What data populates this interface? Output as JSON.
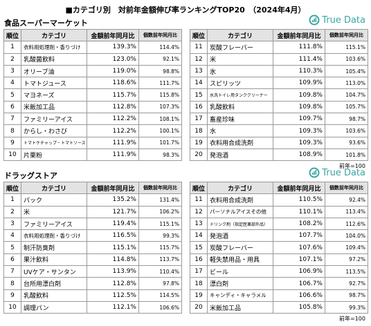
{
  "title": "■カテゴリ別　対前年金額伸び率ランキングTOP20　（2024年4月）",
  "sections": [
    {
      "heading": "食品スーパーマーケット",
      "logo": "True Data",
      "note": "前年=100",
      "tables": [
        {
          "headers": [
            "順位",
            "カテゴリ",
            "金額前年同月比",
            "個数前年同月比"
          ],
          "rows": [
            [
              "1",
              "衣料用処理剤・香りづけ",
              "139.3%",
              "114.4%"
            ],
            [
              "2",
              "乳酸菌飲料",
              "123.0%",
              "92.1%"
            ],
            [
              "3",
              "オリーブ油",
              "119.0%",
              "98.8%"
            ],
            [
              "4",
              "トマトジュース",
              "118.6%",
              "111.7%"
            ],
            [
              "5",
              "マヨネーズ",
              "115.7%",
              "115.8%"
            ],
            [
              "6",
              "米飯加工品",
              "112.8%",
              "107.3%"
            ],
            [
              "7",
              "ファミリーアイス",
              "112.2%",
              "108.1%"
            ],
            [
              "8",
              "からし・わさび",
              "112.2%",
              "100.1%"
            ],
            [
              "9",
              "トマトケチャップ・トマトソース",
              "111.9%",
              "101.7%"
            ],
            [
              "10",
              "片栗粉",
              "111.9%",
              "98.3%"
            ]
          ]
        },
        {
          "headers": [
            "順位",
            "カテゴリ",
            "金額前年同月比",
            "個数前年同月比"
          ],
          "rows": [
            [
              "11",
              "炭酸フレーバー",
              "111.8%",
              "115.1%"
            ],
            [
              "12",
              "米",
              "111.4%",
              "103.6%"
            ],
            [
              "13",
              "氷",
              "110.3%",
              "105.4%"
            ],
            [
              "14",
              "スピリッツ",
              "109.9%",
              "113.0%"
            ],
            [
              "15",
              "水洗トイレ用タンククリーナー",
              "109.8%",
              "104.7%"
            ],
            [
              "16",
              "乳酸飲料",
              "109.8%",
              "105.7%"
            ],
            [
              "17",
              "畜産珍味",
              "109.7%",
              "98.7%"
            ],
            [
              "18",
              "水",
              "109.3%",
              "103.6%"
            ],
            [
              "19",
              "衣料用合成洗剤",
              "109.3%",
              "93.6%"
            ],
            [
              "20",
              "発泡酒",
              "108.9%",
              "101.8%"
            ]
          ]
        }
      ]
    },
    {
      "heading": "ドラッグストア",
      "logo": "True Data",
      "note": "前年=100",
      "tables": [
        {
          "headers": [
            "順位",
            "カテゴリ",
            "金額前年同月比",
            "個数前年同月比"
          ],
          "rows": [
            [
              "1",
              "パック",
              "135.2%",
              "131.4%"
            ],
            [
              "2",
              "米",
              "121.7%",
              "106.2%"
            ],
            [
              "3",
              "ファミリーアイス",
              "119.4%",
              "115.1%"
            ],
            [
              "4",
              "衣料用処理剤・香りづけ",
              "116.5%",
              "99.3%"
            ],
            [
              "5",
              "制汗防臭剤",
              "115.1%",
              "115.7%"
            ],
            [
              "6",
              "果汁飲料",
              "114.8%",
              "113.7%"
            ],
            [
              "7",
              "UVケア・サンタン",
              "113.9%",
              "110.4%"
            ],
            [
              "8",
              "台所用漂白剤",
              "112.8%",
              "97.8%"
            ],
            [
              "9",
              "乳酸飲料",
              "112.5%",
              "114.5%"
            ],
            [
              "10",
              "調理パン",
              "112.1%",
              "106.6%"
            ]
          ]
        },
        {
          "headers": [
            "順位",
            "カテゴリ",
            "金額前年同月比",
            "個数前年同月比"
          ],
          "rows": [
            [
              "11",
              "衣料用合成洗剤",
              "110.5%",
              "92.4%"
            ],
            [
              "12",
              "パーソナルアイスその他",
              "110.1%",
              "113.4%"
            ],
            [
              "13",
              "ドリンク剤（指定医薬部外品）",
              "108.2%",
              "112.6%"
            ],
            [
              "14",
              "発泡酒",
              "107.7%",
              "104.0%"
            ],
            [
              "15",
              "炭酸フレーバー",
              "107.6%",
              "109.4%"
            ],
            [
              "16",
              "軽失禁用品・用具",
              "107.1%",
              "97.2%"
            ],
            [
              "17",
              "ビール",
              "106.9%",
              "113.5%"
            ],
            [
              "18",
              "漂白剤",
              "106.7%",
              "92.7%"
            ],
            [
              "19",
              "キャンディ・キャラメル",
              "106.6%",
              "98.7%"
            ],
            [
              "20",
              "米飯加工品",
              "105.8%",
              "99.3%"
            ]
          ]
        }
      ]
    }
  ]
}
